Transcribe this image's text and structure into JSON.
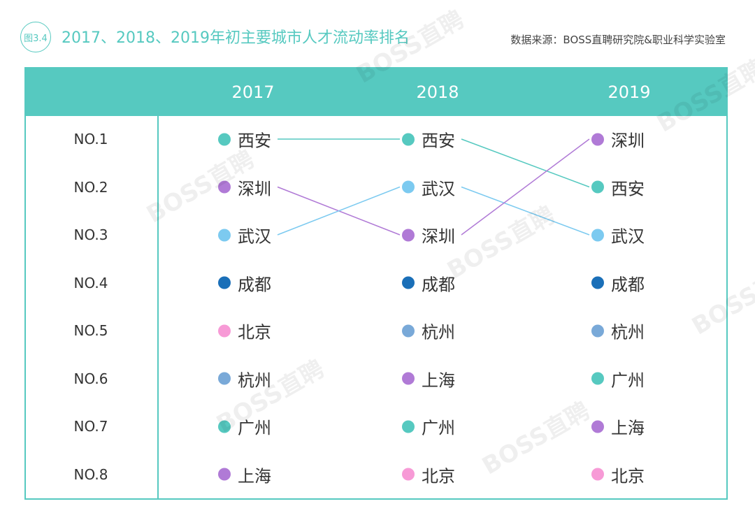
{
  "header": {
    "figure_badge": "图3.4",
    "title": "2017、2018、2019年初主要城市人才流动率排名",
    "source": "数据来源：BOSS直聘研究院&职业科学实验室"
  },
  "watermark_text": "BOSS直聘",
  "colors": {
    "accent": "#56c9c0",
    "line_teal": "#56c9c0",
    "line_purple": "#b07ad6",
    "line_blue": "#7ccaf0"
  },
  "chart_data": {
    "type": "table",
    "title": "2017、2018、2019年初主要城市人才流动率排名",
    "years": [
      "2017",
      "2018",
      "2019"
    ],
    "ranks": [
      "NO.1",
      "NO.2",
      "NO.3",
      "NO.4",
      "NO.5",
      "NO.6",
      "NO.7",
      "NO.8"
    ],
    "columns": [
      {
        "year": "2017",
        "cities": [
          {
            "name": "西安",
            "color": "#56c9c0"
          },
          {
            "name": "深圳",
            "color": "#b07ad6"
          },
          {
            "name": "武汉",
            "color": "#7ccaf0"
          },
          {
            "name": "成都",
            "color": "#1a6fb8"
          },
          {
            "name": "北京",
            "color": "#f79ad6"
          },
          {
            "name": "杭州",
            "color": "#79a9d8"
          },
          {
            "name": "广州",
            "color": "#56c9c0"
          },
          {
            "name": "上海",
            "color": "#b07ad6"
          }
        ]
      },
      {
        "year": "2018",
        "cities": [
          {
            "name": "西安",
            "color": "#56c9c0"
          },
          {
            "name": "武汉",
            "color": "#7ccaf0"
          },
          {
            "name": "深圳",
            "color": "#b07ad6"
          },
          {
            "name": "成都",
            "color": "#1a6fb8"
          },
          {
            "name": "杭州",
            "color": "#79a9d8"
          },
          {
            "name": "上海",
            "color": "#b07ad6"
          },
          {
            "name": "广州",
            "color": "#56c9c0"
          },
          {
            "name": "北京",
            "color": "#f79ad6"
          }
        ]
      },
      {
        "year": "2019",
        "cities": [
          {
            "name": "深圳",
            "color": "#b07ad6"
          },
          {
            "name": "西安",
            "color": "#56c9c0"
          },
          {
            "name": "武汉",
            "color": "#7ccaf0"
          },
          {
            "name": "成都",
            "color": "#1a6fb8"
          },
          {
            "name": "杭州",
            "color": "#79a9d8"
          },
          {
            "name": "广州",
            "color": "#56c9c0"
          },
          {
            "name": "上海",
            "color": "#b07ad6"
          },
          {
            "name": "北京",
            "color": "#f79ad6"
          }
        ]
      }
    ],
    "connections": [
      {
        "city": "西安",
        "from": {
          "year": "2017",
          "rank": 1
        },
        "to": {
          "year": "2018",
          "rank": 1
        },
        "color": "#56c9c0"
      },
      {
        "city": "深圳",
        "from": {
          "year": "2017",
          "rank": 2
        },
        "to": {
          "year": "2018",
          "rank": 3
        },
        "color": "#b07ad6"
      },
      {
        "city": "武汉",
        "from": {
          "year": "2017",
          "rank": 3
        },
        "to": {
          "year": "2018",
          "rank": 2
        },
        "color": "#7ccaf0"
      },
      {
        "city": "西安",
        "from": {
          "year": "2018",
          "rank": 1
        },
        "to": {
          "year": "2019",
          "rank": 2
        },
        "color": "#56c9c0"
      },
      {
        "city": "武汉",
        "from": {
          "year": "2018",
          "rank": 2
        },
        "to": {
          "year": "2019",
          "rank": 3
        },
        "color": "#7ccaf0"
      },
      {
        "city": "深圳",
        "from": {
          "year": "2018",
          "rank": 3
        },
        "to": {
          "year": "2019",
          "rank": 1
        },
        "color": "#b07ad6"
      }
    ]
  }
}
